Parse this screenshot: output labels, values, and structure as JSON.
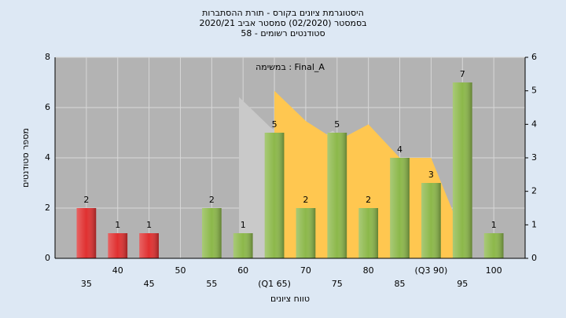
{
  "chart_data": {
    "type": "bar",
    "title": [
      "היסטוגרמת ציונים בקורס - תורת ההסתברות",
      "בסמסטר  (02/2020)  סמסטר אביב 2020/21",
      "סטודנטים רשומים - 58"
    ],
    "annotation": "במשימה : Final_A",
    "ylabel": "מספר סטודנטים",
    "xlabel": "טווח ציונים",
    "categories": [
      "35",
      "40",
      "45",
      "50",
      "55",
      "60",
      "(Q1 65)",
      "70",
      "75",
      "80",
      "85",
      "(Q3 90)",
      "95",
      "100"
    ],
    "series": [
      {
        "values": [
          2,
          1,
          1,
          null,
          2,
          1,
          5,
          2,
          5,
          2,
          4,
          3,
          7,
          1
        ],
        "colors": [
          "#e03030",
          "#e03030",
          "#e03030",
          "#8cb84a",
          "#8cb84a",
          "#8cb84a",
          "#8cb84a",
          "#8cb84a",
          "#8cb84a",
          "#8cb84a",
          "#8cb84a",
          "#8cb84a",
          "#8cb84a",
          "#8cb84a"
        ]
      },
      {
        "type": "area",
        "axis": "y2",
        "color": "#ffc750",
        "values": [
          null,
          null,
          null,
          null,
          null,
          null,
          5,
          4.1,
          3.5,
          4,
          3,
          3,
          0.7,
          null
        ]
      }
    ],
    "ylim": [
      0,
      8
    ],
    "yticks": [
      0,
      2,
      4,
      6,
      8
    ],
    "y2lim": [
      0,
      6
    ],
    "y2ticks": [
      0,
      1,
      2,
      3,
      4,
      5,
      6
    ],
    "grid": true
  }
}
